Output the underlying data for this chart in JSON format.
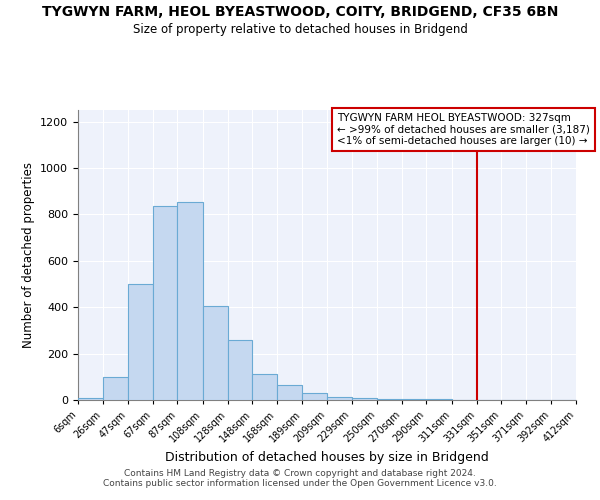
{
  "title": "TYGWYN FARM, HEOL BYEASTWOOD, COITY, BRIDGEND, CF35 6BN",
  "subtitle": "Size of property relative to detached houses in Bridgend",
  "xlabel": "Distribution of detached houses by size in Bridgend",
  "ylabel": "Number of detached properties",
  "bin_edges": [
    6,
    26,
    47,
    67,
    87,
    108,
    128,
    148,
    168,
    189,
    209,
    229,
    250,
    270,
    290,
    311,
    331,
    351,
    371,
    392,
    412
  ],
  "bar_heights": [
    10,
    100,
    500,
    835,
    855,
    405,
    260,
    110,
    65,
    30,
    15,
    10,
    5,
    5,
    5,
    0,
    0,
    0,
    0,
    0
  ],
  "tick_labels": [
    "6sqm",
    "26sqm",
    "47sqm",
    "67sqm",
    "87sqm",
    "108sqm",
    "128sqm",
    "148sqm",
    "168sqm",
    "189sqm",
    "209sqm",
    "229sqm",
    "250sqm",
    "270sqm",
    "290sqm",
    "311sqm",
    "331sqm",
    "351sqm",
    "371sqm",
    "392sqm",
    "412sqm"
  ],
  "bar_color": "#c5d8f0",
  "bar_edgecolor": "#6aaad4",
  "background_color": "#eef2fb",
  "vline_x": 331,
  "vline_color": "#cc0000",
  "annotation_line1": "TYGWYN FARM HEOL BYEASTWOOD: 327sqm",
  "annotation_line2": "← >99% of detached houses are smaller (3,187)",
  "annotation_line3": "<1% of semi-detached houses are larger (10) →",
  "ylim": [
    0,
    1250
  ],
  "yticks": [
    0,
    200,
    400,
    600,
    800,
    1000,
    1200
  ],
  "footer1": "Contains HM Land Registry data © Crown copyright and database right 2024.",
  "footer2": "Contains public sector information licensed under the Open Government Licence v3.0.",
  "fig_width": 6.0,
  "fig_height": 5.0
}
